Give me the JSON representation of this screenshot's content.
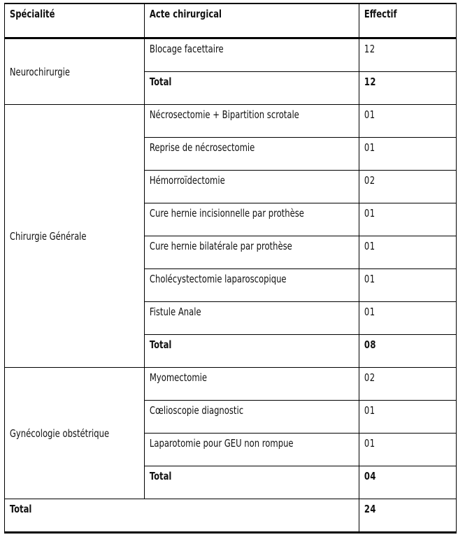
{
  "table": {
    "headers": {
      "specialite": "Spécialité",
      "acte": "Acte chirurgical",
      "effectif": "Effectif"
    },
    "groups": [
      {
        "specialite": "Neurochirurgie",
        "rows": [
          {
            "acte": "Blocage facettaire",
            "effectif": "12"
          }
        ],
        "total_label": "Total",
        "total_value": "12"
      },
      {
        "specialite": "Chirurgie Générale",
        "rows": [
          {
            "acte": "Nécrosectomie + Bipartition scrotale",
            "effectif": "01"
          },
          {
            "acte": "Reprise de nécrosectomie",
            "effectif": "01"
          },
          {
            "acte": "Hémorroïdectomie",
            "effectif": "02"
          },
          {
            "acte": "Cure hernie incisionnelle par prothèse",
            "effectif": "01"
          },
          {
            "acte": "Cure hernie bilatérale par prothèse",
            "effectif": "01"
          },
          {
            "acte": "Cholécystectomie laparoscopique",
            "effectif": "01"
          },
          {
            "acte": "Fistule Anale",
            "effectif": "01"
          }
        ],
        "total_label": "Total",
        "total_value": "08"
      },
      {
        "specialite": "Gynécologie obstétrique",
        "rows": [
          {
            "acte": "Myomectomie",
            "effectif": "02"
          },
          {
            "acte": "Cœlioscopie diagnostic",
            "effectif": "01"
          },
          {
            "acte": "Laparotomie pour GEU non rompue",
            "effectif": "01"
          }
        ],
        "total_label": "Total",
        "total_value": "04"
      }
    ],
    "grand_total_label": "Total",
    "grand_total_value": "24"
  }
}
